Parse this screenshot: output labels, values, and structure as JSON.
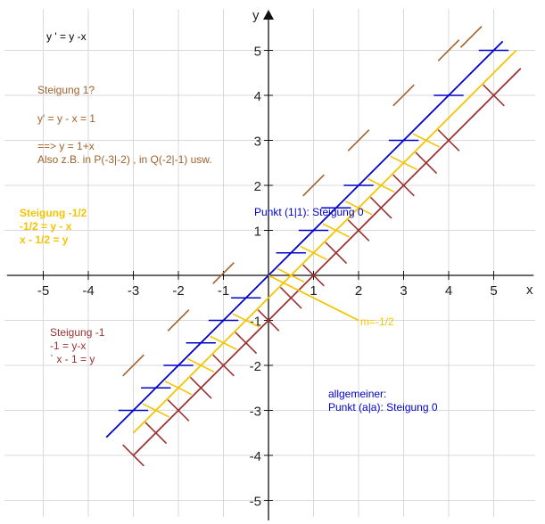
{
  "chart_data": {
    "type": "line",
    "title": "y ' = y -x",
    "xlabel": "x",
    "ylabel": "y",
    "xlim": [
      -5.8,
      5.8
    ],
    "ylim": [
      -5.4,
      5.8
    ],
    "grid": true,
    "x_ticks": [
      -5,
      -4,
      -3,
      -2,
      -1,
      1,
      2,
      3,
      4,
      5
    ],
    "y_ticks": [
      5,
      4,
      3,
      2,
      1,
      -1,
      -2,
      -3,
      -4,
      -5
    ],
    "tick_labels_x": [
      "-5",
      "-4",
      "-3",
      "-2",
      "-1",
      "1",
      "2",
      "3",
      "4",
      "5"
    ],
    "tick_labels_y": [
      "5",
      "4",
      "3",
      "2",
      "1",
      "-1",
      "-2",
      "-3",
      "-4",
      "-5"
    ],
    "colors": {
      "brown": "#a0622d",
      "blue": "#0000cc",
      "gold": "#f5c400",
      "darkred": "#993333",
      "grid": "#d9d9d9",
      "axis": "#111111"
    },
    "series": [
      {
        "key": "blue",
        "color": "#0000cc",
        "x": [
          -3.6,
          5.2
        ],
        "y": [
          -3.6,
          5.2
        ]
      },
      {
        "key": "gold",
        "color": "#f5c400",
        "x": [
          -3.0,
          5.5
        ],
        "y": [
          -3.5,
          5.0
        ]
      },
      {
        "key": "darkred",
        "color": "#993333",
        "x": [
          -3.0,
          5.6
        ],
        "y": [
          -4.0,
          4.6
        ]
      },
      {
        "key": "mline",
        "color": "#f5c400",
        "x": [
          0,
          2.0
        ],
        "y": [
          0,
          -1.0
        ]
      }
    ],
    "slope_marks": [
      {
        "color": "#a0622d",
        "slope": 1,
        "x": [
          -3,
          -2,
          -1,
          1,
          2,
          3,
          4,
          4.5
        ],
        "y": [
          -2,
          -1,
          0.05,
          2.0,
          3.0,
          4.0,
          5.0,
          5.3
        ]
      },
      {
        "color": "#0000cc",
        "slope": 0,
        "x": [
          -3,
          -2.5,
          -2,
          -1.5,
          -1,
          -0.5,
          0.5,
          1,
          1.5,
          2,
          3,
          4,
          5
        ],
        "y": [
          -3,
          -2.5,
          -2,
          -1.5,
          -1,
          -0.5,
          0.5,
          1,
          1.5,
          2,
          3,
          4,
          5
        ]
      },
      {
        "color": "#f5c400",
        "slope": -0.5,
        "x": [
          -2.5,
          -2,
          -1.5,
          -1,
          -0.5,
          0.5,
          1,
          1.5,
          2,
          2.5,
          3,
          3.5
        ],
        "y": [
          -3.0,
          -2.5,
          -2.0,
          -1.5,
          -1.0,
          0.0,
          0.5,
          1.0,
          1.5,
          2.0,
          2.5,
          3.0
        ]
      },
      {
        "color": "#993333",
        "slope": -1,
        "x": [
          -3,
          -2.5,
          -2,
          -1.5,
          -1,
          -0.5,
          0,
          0.5,
          1,
          1.5,
          2,
          2.5,
          3,
          3.5,
          4,
          5
        ],
        "y": [
          -4,
          -3.5,
          -3,
          -2.5,
          -2,
          -1.5,
          -1,
          -0.5,
          0,
          0.5,
          1,
          1.5,
          2,
          2.5,
          3,
          4
        ]
      }
    ],
    "annotations": [
      {
        "key": "brown_title",
        "color": "#a0622d",
        "lines": [
          "Steigung 1?"
        ]
      },
      {
        "key": "brown_eq",
        "color": "#a0622d",
        "lines": [
          "y' = y - x = 1"
        ]
      },
      {
        "key": "brown_res",
        "color": "#a0622d",
        "lines": [
          "==> y = 1+x",
          "Also z.B. in P(-3|-2) , in Q(-2|-1) usw."
        ]
      },
      {
        "key": "gold_note",
        "color": "#f5c400",
        "lines": [
          "Steigung -1/2",
          "-1/2 = y - x",
          "x - 1/2 = y"
        ]
      },
      {
        "key": "red_note",
        "color": "#993333",
        "lines": [
          "Steigung -1",
          "-1 = y-x",
          "` x - 1 = y"
        ]
      },
      {
        "key": "blue_point",
        "color": "#0000cc",
        "lines": [
          "Punkt (1|1): Steigung 0"
        ]
      },
      {
        "key": "blue_general",
        "color": "#0000cc",
        "lines": [
          "allgemeiner:",
          "Punkt (a|a): Steigung 0"
        ]
      },
      {
        "key": "m_label",
        "color": "#f5c400",
        "lines": [
          "m=-1/2"
        ]
      }
    ]
  }
}
